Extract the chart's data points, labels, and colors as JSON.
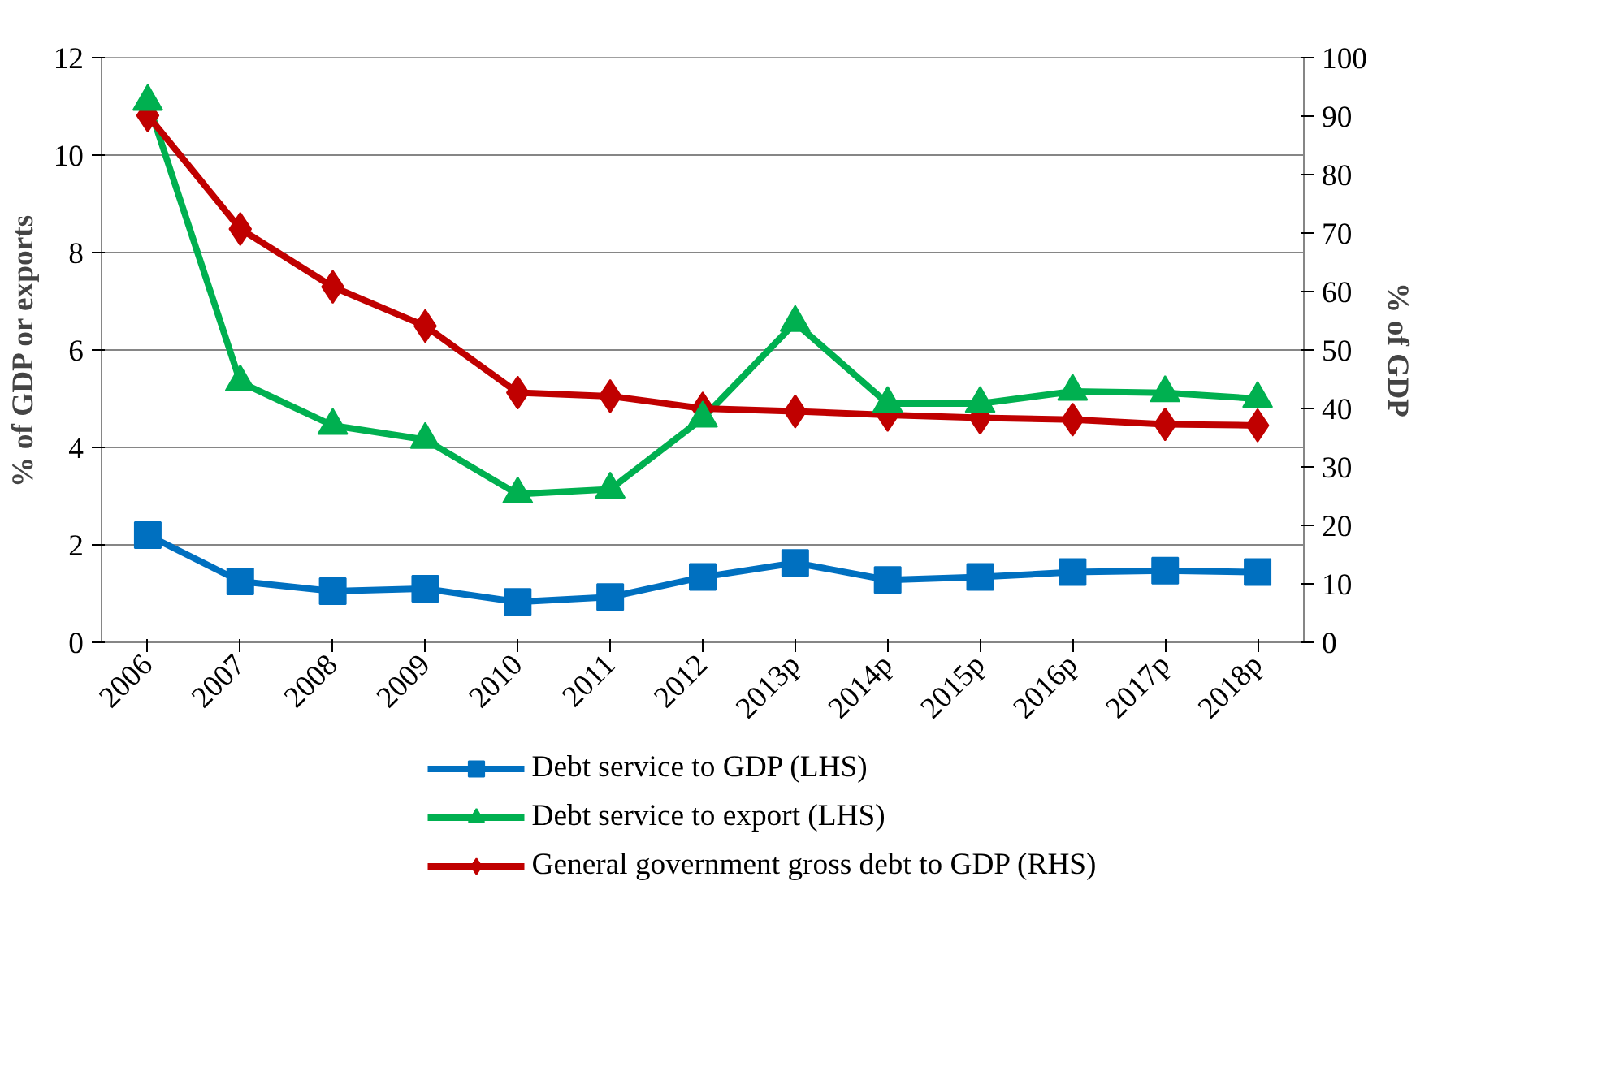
{
  "chart_data": {
    "type": "line",
    "ylabel": "% of GDP or exports",
    "y2label": "% of GDP",
    "categories": [
      "2006",
      "2007",
      "2008",
      "2009",
      "2010",
      "2011",
      "2012",
      "2013p",
      "2014p",
      "2015p",
      "2016p",
      "2017p",
      "2018p"
    ],
    "series": [
      {
        "name": "Debt service to GDP (LHS)",
        "color": "#0070c0",
        "marker": "square",
        "values": [
          2.2,
          1.25,
          1.05,
          1.1,
          0.83,
          0.93,
          1.34,
          1.63,
          1.28,
          1.34,
          1.44,
          1.47,
          1.44
        ]
      },
      {
        "name": "Debt service to export (LHS)",
        "color": "#00b050",
        "marker": "triangle",
        "values": [
          11.1,
          5.34,
          4.45,
          4.16,
          3.04,
          3.14,
          4.6,
          6.56,
          4.9,
          4.9,
          5.15,
          5.12,
          5.0
        ]
      },
      {
        "name": "General government gross debt to GDP (RHS)",
        "color": "#c00000",
        "marker": "diamond",
        "axis": "y2",
        "values": [
          90.1,
          70.7,
          60.8,
          54.1,
          42.7,
          42.1,
          40.0,
          39.5,
          38.9,
          38.4,
          38.1,
          37.3,
          37.1
        ]
      }
    ],
    "ylim": [
      0,
      12
    ],
    "yticks": [
      0,
      2,
      4,
      6,
      8,
      10,
      12
    ],
    "y2lim": [
      0,
      100
    ],
    "y2ticks": [
      0,
      10,
      20,
      30,
      40,
      50,
      60,
      70,
      80,
      90,
      100
    ],
    "grid": "y",
    "legend": "bottom",
    "line_style": "solid"
  }
}
